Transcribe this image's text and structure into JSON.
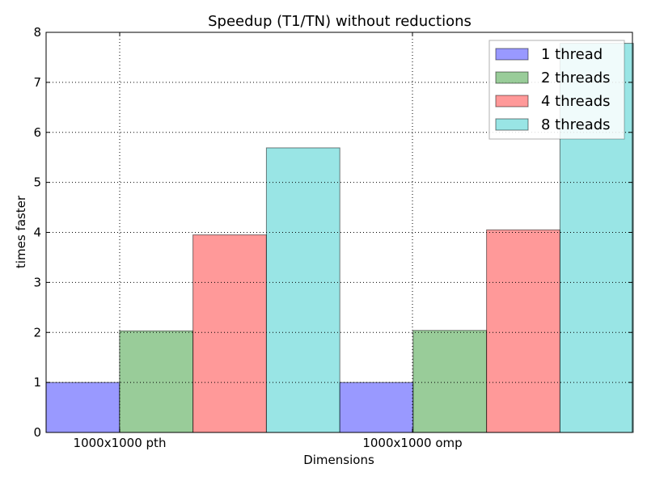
{
  "chart_data": {
    "type": "bar",
    "title": "Speedup (T1/TN) without reductions",
    "xlabel": "Dimensions",
    "ylabel": "times faster",
    "categories": [
      "1000x1000 pth",
      "1000x1000 omp"
    ],
    "ylim": [
      0,
      8
    ],
    "yticks": [
      0,
      1,
      2,
      3,
      4,
      5,
      6,
      7,
      8
    ],
    "grid": true,
    "legend_position": "top-right",
    "bar_alpha": 0.4,
    "series": [
      {
        "name": "1 thread",
        "color": "#0000ff",
        "values": [
          1.0,
          1.0
        ]
      },
      {
        "name": "2 threads",
        "color": "#008000",
        "values": [
          2.03,
          2.04
        ]
      },
      {
        "name": "4 threads",
        "color": "#ff0000",
        "values": [
          3.95,
          4.05
        ]
      },
      {
        "name": "8 threads",
        "color": "#00bfbf",
        "values": [
          5.69,
          7.78
        ]
      }
    ]
  }
}
